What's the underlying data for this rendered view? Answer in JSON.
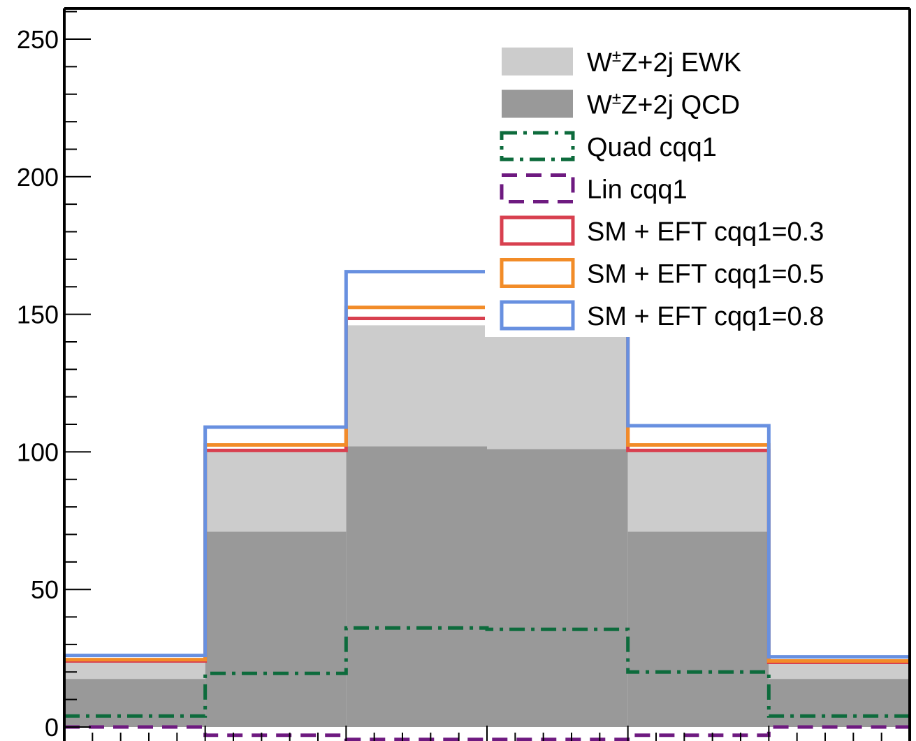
{
  "chart_data": {
    "type": "histogram",
    "title": "",
    "xlabel": "",
    "ylabel": "",
    "ylim": [
      0,
      260
    ],
    "yticks": [
      0,
      50,
      100,
      150,
      200,
      250
    ],
    "bins": 6,
    "legend_position": "top-right",
    "stacked": [
      {
        "name": "W±Z+2j QCD",
        "label_prefix": "W",
        "label_sup": "±",
        "label_suffix": "Z+2j QCD",
        "color": "#999999",
        "values": [
          17.5,
          71,
          102,
          101,
          71,
          17.5
        ]
      },
      {
        "name": "W±Z+2j EWK",
        "label_prefix": "W",
        "label_sup": "±",
        "label_suffix": "Z+2j EWK",
        "color": "#cccccc",
        "values": [
          6,
          29,
          44,
          45,
          29,
          6
        ]
      }
    ],
    "lines": [
      {
        "name": "Quad cqq1",
        "color": "#0d6b3c",
        "style": "dashdot",
        "values": [
          4,
          19.5,
          36,
          35.5,
          20,
          4
        ]
      },
      {
        "name": "Lin cqq1",
        "color": "#6e1a80",
        "style": "dashed",
        "values": [
          0,
          -3,
          -4.5,
          -4.5,
          -3,
          0
        ]
      },
      {
        "name": "SM + EFT cqq1=0.3",
        "color": "#d8404f",
        "style": "solid",
        "values": [
          24,
          100.5,
          148.5,
          148.5,
          100.5,
          23.5
        ]
      },
      {
        "name": "SM + EFT cqq1=0.5",
        "color": "#f28c28",
        "style": "solid",
        "values": [
          24.5,
          102.5,
          152.5,
          152.5,
          102.5,
          24
        ]
      },
      {
        "name": "SM + EFT cqq1=0.8",
        "color": "#6890e0",
        "style": "solid",
        "values": [
          26,
          109,
          165.5,
          165.5,
          109.5,
          25.5
        ]
      }
    ],
    "legend_order": [
      "W±Z+2j EWK",
      "W±Z+2j QCD",
      "Quad cqq1",
      "Lin cqq1",
      "SM + EFT cqq1=0.3",
      "SM + EFT cqq1=0.5",
      "SM + EFT cqq1=0.8"
    ]
  }
}
